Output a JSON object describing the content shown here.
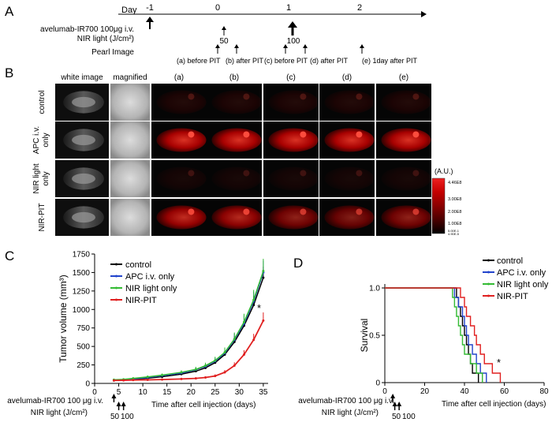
{
  "panels": {
    "A": "A",
    "B": "B",
    "C": "C",
    "D": "D"
  },
  "timeline": {
    "day_label": "Day",
    "days": [
      "-1",
      "0",
      "1",
      "2"
    ],
    "rows": [
      "avelumab-IR700 100μg i.v.",
      "NIR light (J/cm²)",
      "Pearl Image"
    ],
    "nir_doses": [
      "50",
      "100"
    ],
    "image_points": [
      "(a) before PIT",
      "(b) after PIT",
      "(c) before PIT",
      "(d) after PIT",
      "(e) 1day after PIT"
    ]
  },
  "imaging": {
    "columns": [
      "white image",
      "magnified",
      "(a)",
      "(b)",
      "(c)",
      "(d)",
      "(e)"
    ],
    "rows": [
      "control",
      "APC i.v. only",
      "NIR light only",
      "NIR-PIT"
    ],
    "colorbar": {
      "unit": "(A.U.)",
      "ticks": [
        "4.46E8",
        "3.00E8",
        "2.00E8",
        "1.00E8",
        "5.00E-1",
        "4.90E-5"
      ],
      "colors": [
        "#000000",
        "#4a0000",
        "#8a0000",
        "#c40000",
        "#ee2020"
      ]
    },
    "intensity": {
      "control": 0.12,
      "APC i.v. only": 0.85,
      "NIR light only": 0.08,
      "NIR-PIT": [
        0.75,
        0.7,
        0.55,
        0.5,
        0.55
      ]
    }
  },
  "chart_data": [
    {
      "type": "line",
      "title": "",
      "xlabel": "Time after cell injection (days)",
      "ylabel": "Tumor volume (mm³)",
      "xlim": [
        0,
        36
      ],
      "ylim": [
        0,
        1750
      ],
      "xticks": [
        0,
        5,
        10,
        15,
        20,
        25,
        30,
        35
      ],
      "yticks": [
        0,
        250,
        500,
        750,
        1000,
        1250,
        1500,
        1750
      ],
      "x": [
        4,
        6,
        8,
        11,
        14,
        18,
        21,
        23,
        25,
        27,
        29,
        31,
        33,
        35
      ],
      "series": [
        {
          "name": "control",
          "color": "#000000",
          "values": [
            40,
            45,
            55,
            70,
            90,
            125,
            165,
            210,
            280,
            390,
            560,
            780,
            1060,
            1430
          ],
          "errors": [
            10,
            10,
            12,
            15,
            20,
            25,
            30,
            35,
            45,
            60,
            80,
            100,
            120,
            150
          ]
        },
        {
          "name": "APC i.v. only",
          "color": "#2244cc",
          "values": [
            45,
            50,
            60,
            80,
            105,
            140,
            185,
            230,
            300,
            410,
            590,
            810,
            1110,
            1500
          ],
          "errors": [
            10,
            12,
            14,
            18,
            22,
            28,
            32,
            38,
            48,
            65,
            85,
            110,
            130,
            160
          ]
        },
        {
          "name": "NIR light only",
          "color": "#33bb33",
          "values": [
            50,
            55,
            68,
            88,
            112,
            150,
            190,
            240,
            310,
            420,
            600,
            830,
            1130,
            1520
          ],
          "errors": [
            10,
            12,
            14,
            18,
            22,
            28,
            34,
            40,
            50,
            66,
            88,
            112,
            135,
            165
          ]
        },
        {
          "name": "NIR-PIT",
          "color": "#e02020",
          "values": [
            40,
            42,
            45,
            48,
            52,
            60,
            68,
            80,
            100,
            150,
            240,
            390,
            590,
            850
          ],
          "errors": [
            8,
            8,
            9,
            10,
            10,
            12,
            14,
            16,
            22,
            30,
            45,
            60,
            80,
            110
          ]
        }
      ],
      "annotations": [
        "*"
      ],
      "treatment": {
        "antibody_label": "avelumab-IR700 100 μg i.v.",
        "nir_label": "NIR light (J/cm²)",
        "doses": [
          "50",
          "100"
        ],
        "antibody_day": 4,
        "nir_days": [
          5,
          6
        ]
      }
    },
    {
      "type": "line",
      "title": "",
      "xlabel": "Time after cell injection (days)",
      "ylabel": "Survival",
      "xlim": [
        0,
        80
      ],
      "ylim": [
        0,
        1.0
      ],
      "xticks": [
        0,
        20,
        40,
        60,
        80
      ],
      "yticks": [
        0.0,
        0.5,
        1.0
      ],
      "ytick_labels": [
        "0",
        "0.5",
        "1.0"
      ],
      "series": [
        {
          "name": "control",
          "color": "#000000",
          "times": [
            0,
            36,
            37,
            38,
            39,
            40,
            41,
            42,
            43,
            44,
            47
          ],
          "survival": [
            1.0,
            0.9,
            0.8,
            0.7,
            0.6,
            0.5,
            0.4,
            0.3,
            0.2,
            0.1,
            0.0
          ]
        },
        {
          "name": "APC i.v. only",
          "color": "#2244cc",
          "times": [
            0,
            35,
            37,
            39,
            40,
            41,
            42,
            44,
            46,
            48,
            51
          ],
          "survival": [
            1.0,
            0.9,
            0.8,
            0.7,
            0.6,
            0.5,
            0.4,
            0.3,
            0.2,
            0.1,
            0.0
          ]
        },
        {
          "name": "NIR light only",
          "color": "#33bb33",
          "times": [
            0,
            34,
            35,
            36,
            37,
            38,
            39,
            40,
            43,
            46,
            49
          ],
          "survival": [
            1.0,
            0.9,
            0.8,
            0.7,
            0.6,
            0.5,
            0.4,
            0.3,
            0.2,
            0.1,
            0.0
          ]
        },
        {
          "name": "NIR-PIT",
          "color": "#e02020",
          "times": [
            0,
            38,
            40,
            41,
            43,
            45,
            46,
            48,
            50,
            54,
            58
          ],
          "survival": [
            1.0,
            0.9,
            0.8,
            0.7,
            0.6,
            0.5,
            0.4,
            0.3,
            0.2,
            0.1,
            0.0
          ]
        }
      ],
      "annotations": [
        "*"
      ],
      "treatment": {
        "antibody_label": "avelumab-IR700 100 μg i.v.",
        "nir_label": "NIR light (J/cm²)",
        "doses": [
          "50",
          "100"
        ],
        "antibody_day": 4,
        "nir_days": [
          5,
          6
        ]
      }
    }
  ]
}
